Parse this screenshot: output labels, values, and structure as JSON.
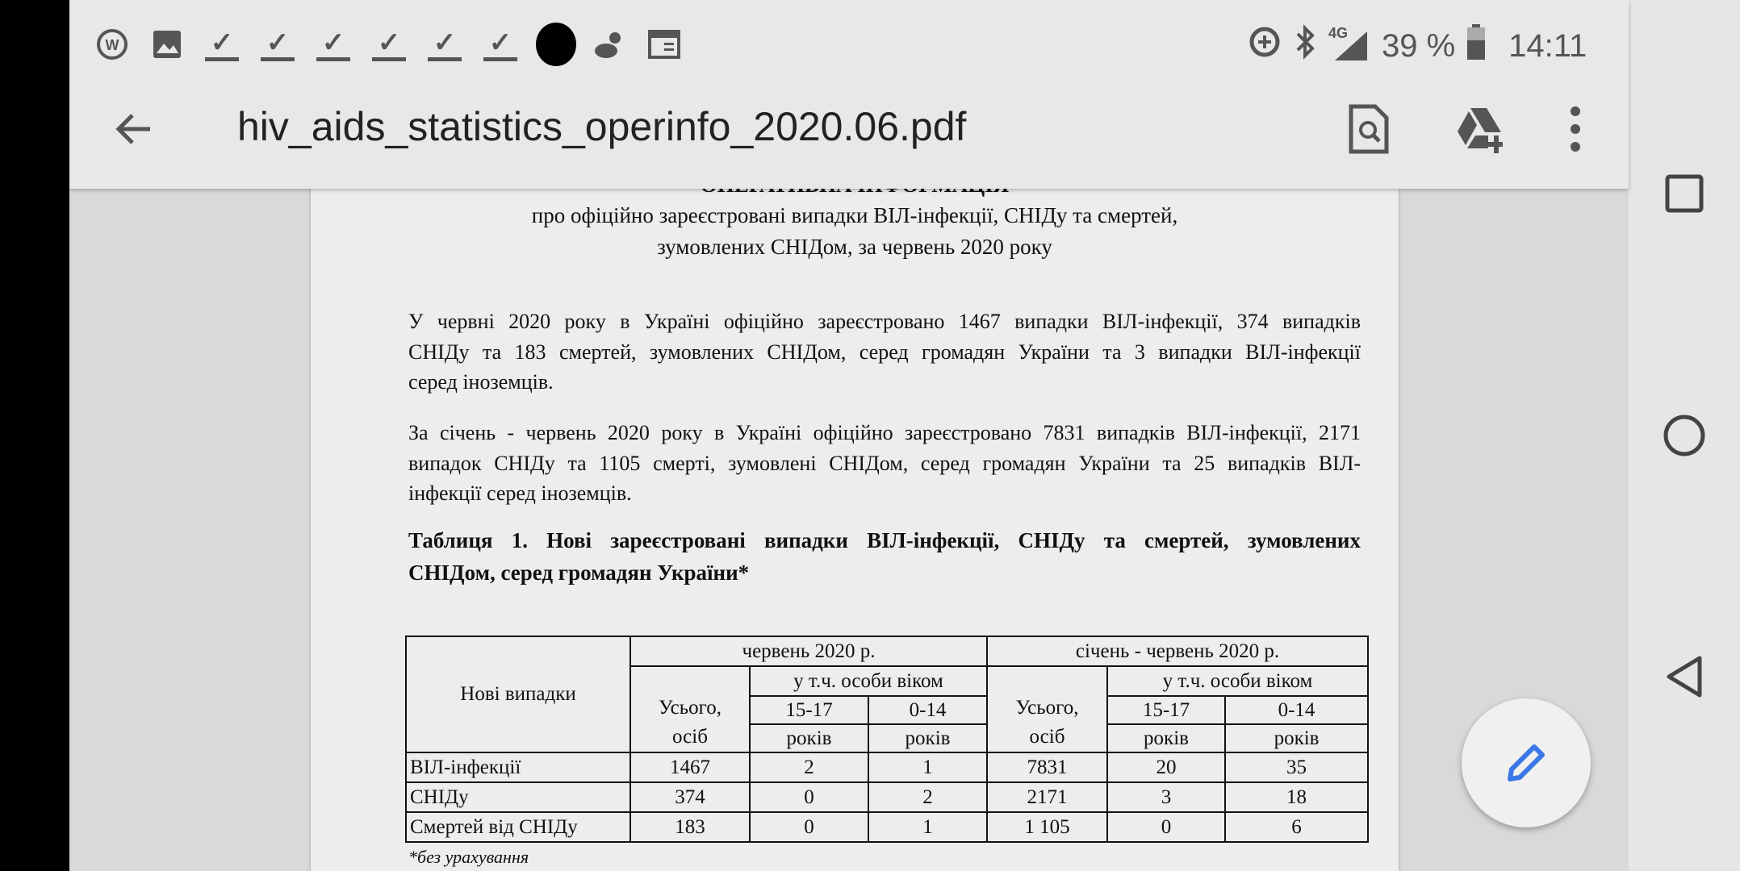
{
  "status_bar": {
    "left_icons": [
      "wps-icon",
      "image-icon",
      "download-done-icon",
      "download-done-icon",
      "download-done-icon",
      "download-done-icon",
      "download-done-icon",
      "download-done-icon",
      "black-circle-icon",
      "weather-icon",
      "calendar-icon"
    ],
    "right_icons": [
      "data-saver-icon",
      "bluetooth-icon",
      "signal-4g-icon",
      "battery-icon"
    ],
    "network": "4G",
    "battery": "39 %",
    "battery_level": 39,
    "time": "14:11"
  },
  "toolbar": {
    "title": "hiv_aids_statistics_operinfo_2020.06.pdf",
    "icons": [
      "back-arrow-icon",
      "find-in-document-icon",
      "add-to-drive-icon",
      "more-vert-icon"
    ]
  },
  "document": {
    "title": "ОПЕРАТИВНА ІНФОРМАЦІЯ",
    "subtitle": [
      "про офіційно зареєстровані випадки ВІЛ-інфекції, СНІДу та смертей,",
      "зумовлених СНІДом, за червень 2020 року"
    ],
    "paragraph1": [
      "У червні 2020 року в Україні офіційно зареєстровано 1467 випадки ВІЛ-інфекції, 374 випадків",
      "СНІДу та 183 смертей, зумовлених СНІДом, серед громадян України та 3 випадки ВІЛ-інфекції",
      "серед іноземців."
    ],
    "paragraph2": [
      "За січень - червень 2020 року в Україні офіційно зареєстровано 7831 випадків ВІЛ-інфекції, 2171",
      "випадок СНІДу та 1105 смерті, зумовлені СНІДом, серед громадян України та 25 випадків ВІЛ-",
      "інфекції серед іноземців."
    ],
    "table_heading": [
      "Таблиця 1. Нові зареєстровані випадки ВІЛ-інфекції, СНІДу та смертей, зумовлених",
      "СНІДом, серед громадян України*"
    ],
    "table": {
      "row_header": "Нові випадки",
      "group1": "червень  2020 р.",
      "group2": "січень - червень 2020 р.",
      "total": [
        "Усього,",
        "осіб"
      ],
      "age_group": "у т.ч. особи віком",
      "age1": "15-17",
      "age2": "0-14",
      "years": "років",
      "rows": [
        {
          "label": "ВІЛ-інфекції",
          "values": [
            "1467",
            "2",
            "1",
            "7831",
            "20",
            "35"
          ]
        },
        {
          "label": "СНІДу",
          "values": [
            "374",
            "0",
            "2",
            "2171",
            "3",
            "18"
          ]
        },
        {
          "label": "Смертей від СНІДу",
          "values": [
            "183",
            "0",
            "1",
            "1 105",
            "0",
            "6"
          ]
        }
      ]
    },
    "footnote": "*без урахування"
  },
  "fab": {
    "icon": "edit-pencil-icon",
    "color": "#3b78e7"
  },
  "nav_bar": {
    "icons": [
      "recents-square-icon",
      "home-circle-icon",
      "back-triangle-icon"
    ]
  }
}
